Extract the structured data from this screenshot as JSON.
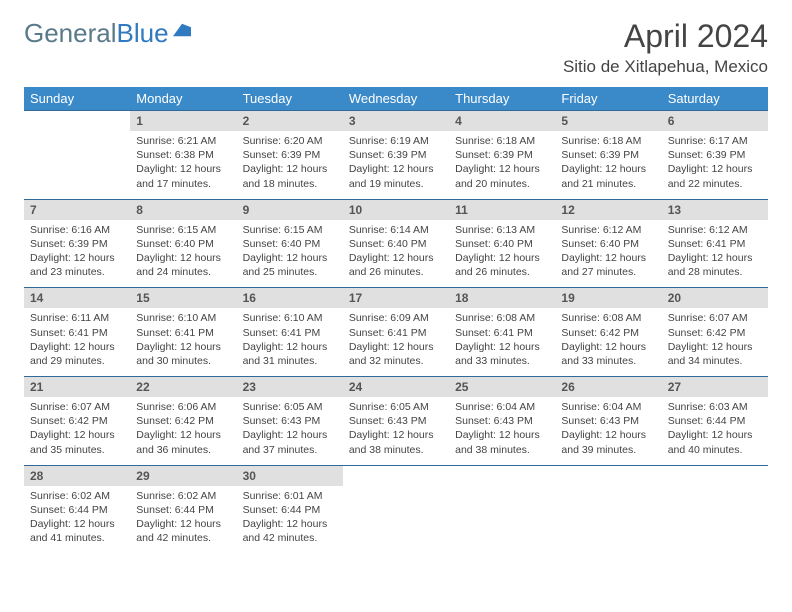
{
  "logo": {
    "part1": "General",
    "part2": "Blue"
  },
  "title": {
    "month": "April 2024",
    "location": "Sitio de Xitlapehua, Mexico"
  },
  "dow": [
    "Sunday",
    "Monday",
    "Tuesday",
    "Wednesday",
    "Thursday",
    "Friday",
    "Saturday"
  ],
  "colors": {
    "header_bg": "#3a8aca",
    "header_text": "#ffffff",
    "daynum_bg": "#e0e0e0",
    "daynum_text": "#555555",
    "divider": "#2f6a9a",
    "body_text": "#444444",
    "page_bg": "#ffffff",
    "logo_general": "#5a7a8a",
    "logo_blue": "#2f7ac0"
  },
  "typography": {
    "month_title_pt": 32,
    "location_pt": 17,
    "dow_pt": 13,
    "daynum_pt": 12,
    "cell_pt": 10.5,
    "logo_pt": 26
  },
  "layout": {
    "columns": 7,
    "weeks": 5,
    "first_weekday_index": 1,
    "days_in_month": 30
  },
  "labels": {
    "sunrise": "Sunrise:",
    "sunset": "Sunset:",
    "daylight": "Daylight:"
  },
  "days": [
    {
      "n": 1,
      "sr": "6:21 AM",
      "ss": "6:38 PM",
      "dl": "12 hours and 17 minutes."
    },
    {
      "n": 2,
      "sr": "6:20 AM",
      "ss": "6:39 PM",
      "dl": "12 hours and 18 minutes."
    },
    {
      "n": 3,
      "sr": "6:19 AM",
      "ss": "6:39 PM",
      "dl": "12 hours and 19 minutes."
    },
    {
      "n": 4,
      "sr": "6:18 AM",
      "ss": "6:39 PM",
      "dl": "12 hours and 20 minutes."
    },
    {
      "n": 5,
      "sr": "6:18 AM",
      "ss": "6:39 PM",
      "dl": "12 hours and 21 minutes."
    },
    {
      "n": 6,
      "sr": "6:17 AM",
      "ss": "6:39 PM",
      "dl": "12 hours and 22 minutes."
    },
    {
      "n": 7,
      "sr": "6:16 AM",
      "ss": "6:39 PM",
      "dl": "12 hours and 23 minutes."
    },
    {
      "n": 8,
      "sr": "6:15 AM",
      "ss": "6:40 PM",
      "dl": "12 hours and 24 minutes."
    },
    {
      "n": 9,
      "sr": "6:15 AM",
      "ss": "6:40 PM",
      "dl": "12 hours and 25 minutes."
    },
    {
      "n": 10,
      "sr": "6:14 AM",
      "ss": "6:40 PM",
      "dl": "12 hours and 26 minutes."
    },
    {
      "n": 11,
      "sr": "6:13 AM",
      "ss": "6:40 PM",
      "dl": "12 hours and 26 minutes."
    },
    {
      "n": 12,
      "sr": "6:12 AM",
      "ss": "6:40 PM",
      "dl": "12 hours and 27 minutes."
    },
    {
      "n": 13,
      "sr": "6:12 AM",
      "ss": "6:41 PM",
      "dl": "12 hours and 28 minutes."
    },
    {
      "n": 14,
      "sr": "6:11 AM",
      "ss": "6:41 PM",
      "dl": "12 hours and 29 minutes."
    },
    {
      "n": 15,
      "sr": "6:10 AM",
      "ss": "6:41 PM",
      "dl": "12 hours and 30 minutes."
    },
    {
      "n": 16,
      "sr": "6:10 AM",
      "ss": "6:41 PM",
      "dl": "12 hours and 31 minutes."
    },
    {
      "n": 17,
      "sr": "6:09 AM",
      "ss": "6:41 PM",
      "dl": "12 hours and 32 minutes."
    },
    {
      "n": 18,
      "sr": "6:08 AM",
      "ss": "6:41 PM",
      "dl": "12 hours and 33 minutes."
    },
    {
      "n": 19,
      "sr": "6:08 AM",
      "ss": "6:42 PM",
      "dl": "12 hours and 33 minutes."
    },
    {
      "n": 20,
      "sr": "6:07 AM",
      "ss": "6:42 PM",
      "dl": "12 hours and 34 minutes."
    },
    {
      "n": 21,
      "sr": "6:07 AM",
      "ss": "6:42 PM",
      "dl": "12 hours and 35 minutes."
    },
    {
      "n": 22,
      "sr": "6:06 AM",
      "ss": "6:42 PM",
      "dl": "12 hours and 36 minutes."
    },
    {
      "n": 23,
      "sr": "6:05 AM",
      "ss": "6:43 PM",
      "dl": "12 hours and 37 minutes."
    },
    {
      "n": 24,
      "sr": "6:05 AM",
      "ss": "6:43 PM",
      "dl": "12 hours and 38 minutes."
    },
    {
      "n": 25,
      "sr": "6:04 AM",
      "ss": "6:43 PM",
      "dl": "12 hours and 38 minutes."
    },
    {
      "n": 26,
      "sr": "6:04 AM",
      "ss": "6:43 PM",
      "dl": "12 hours and 39 minutes."
    },
    {
      "n": 27,
      "sr": "6:03 AM",
      "ss": "6:44 PM",
      "dl": "12 hours and 40 minutes."
    },
    {
      "n": 28,
      "sr": "6:02 AM",
      "ss": "6:44 PM",
      "dl": "12 hours and 41 minutes."
    },
    {
      "n": 29,
      "sr": "6:02 AM",
      "ss": "6:44 PM",
      "dl": "12 hours and 42 minutes."
    },
    {
      "n": 30,
      "sr": "6:01 AM",
      "ss": "6:44 PM",
      "dl": "12 hours and 42 minutes."
    }
  ]
}
